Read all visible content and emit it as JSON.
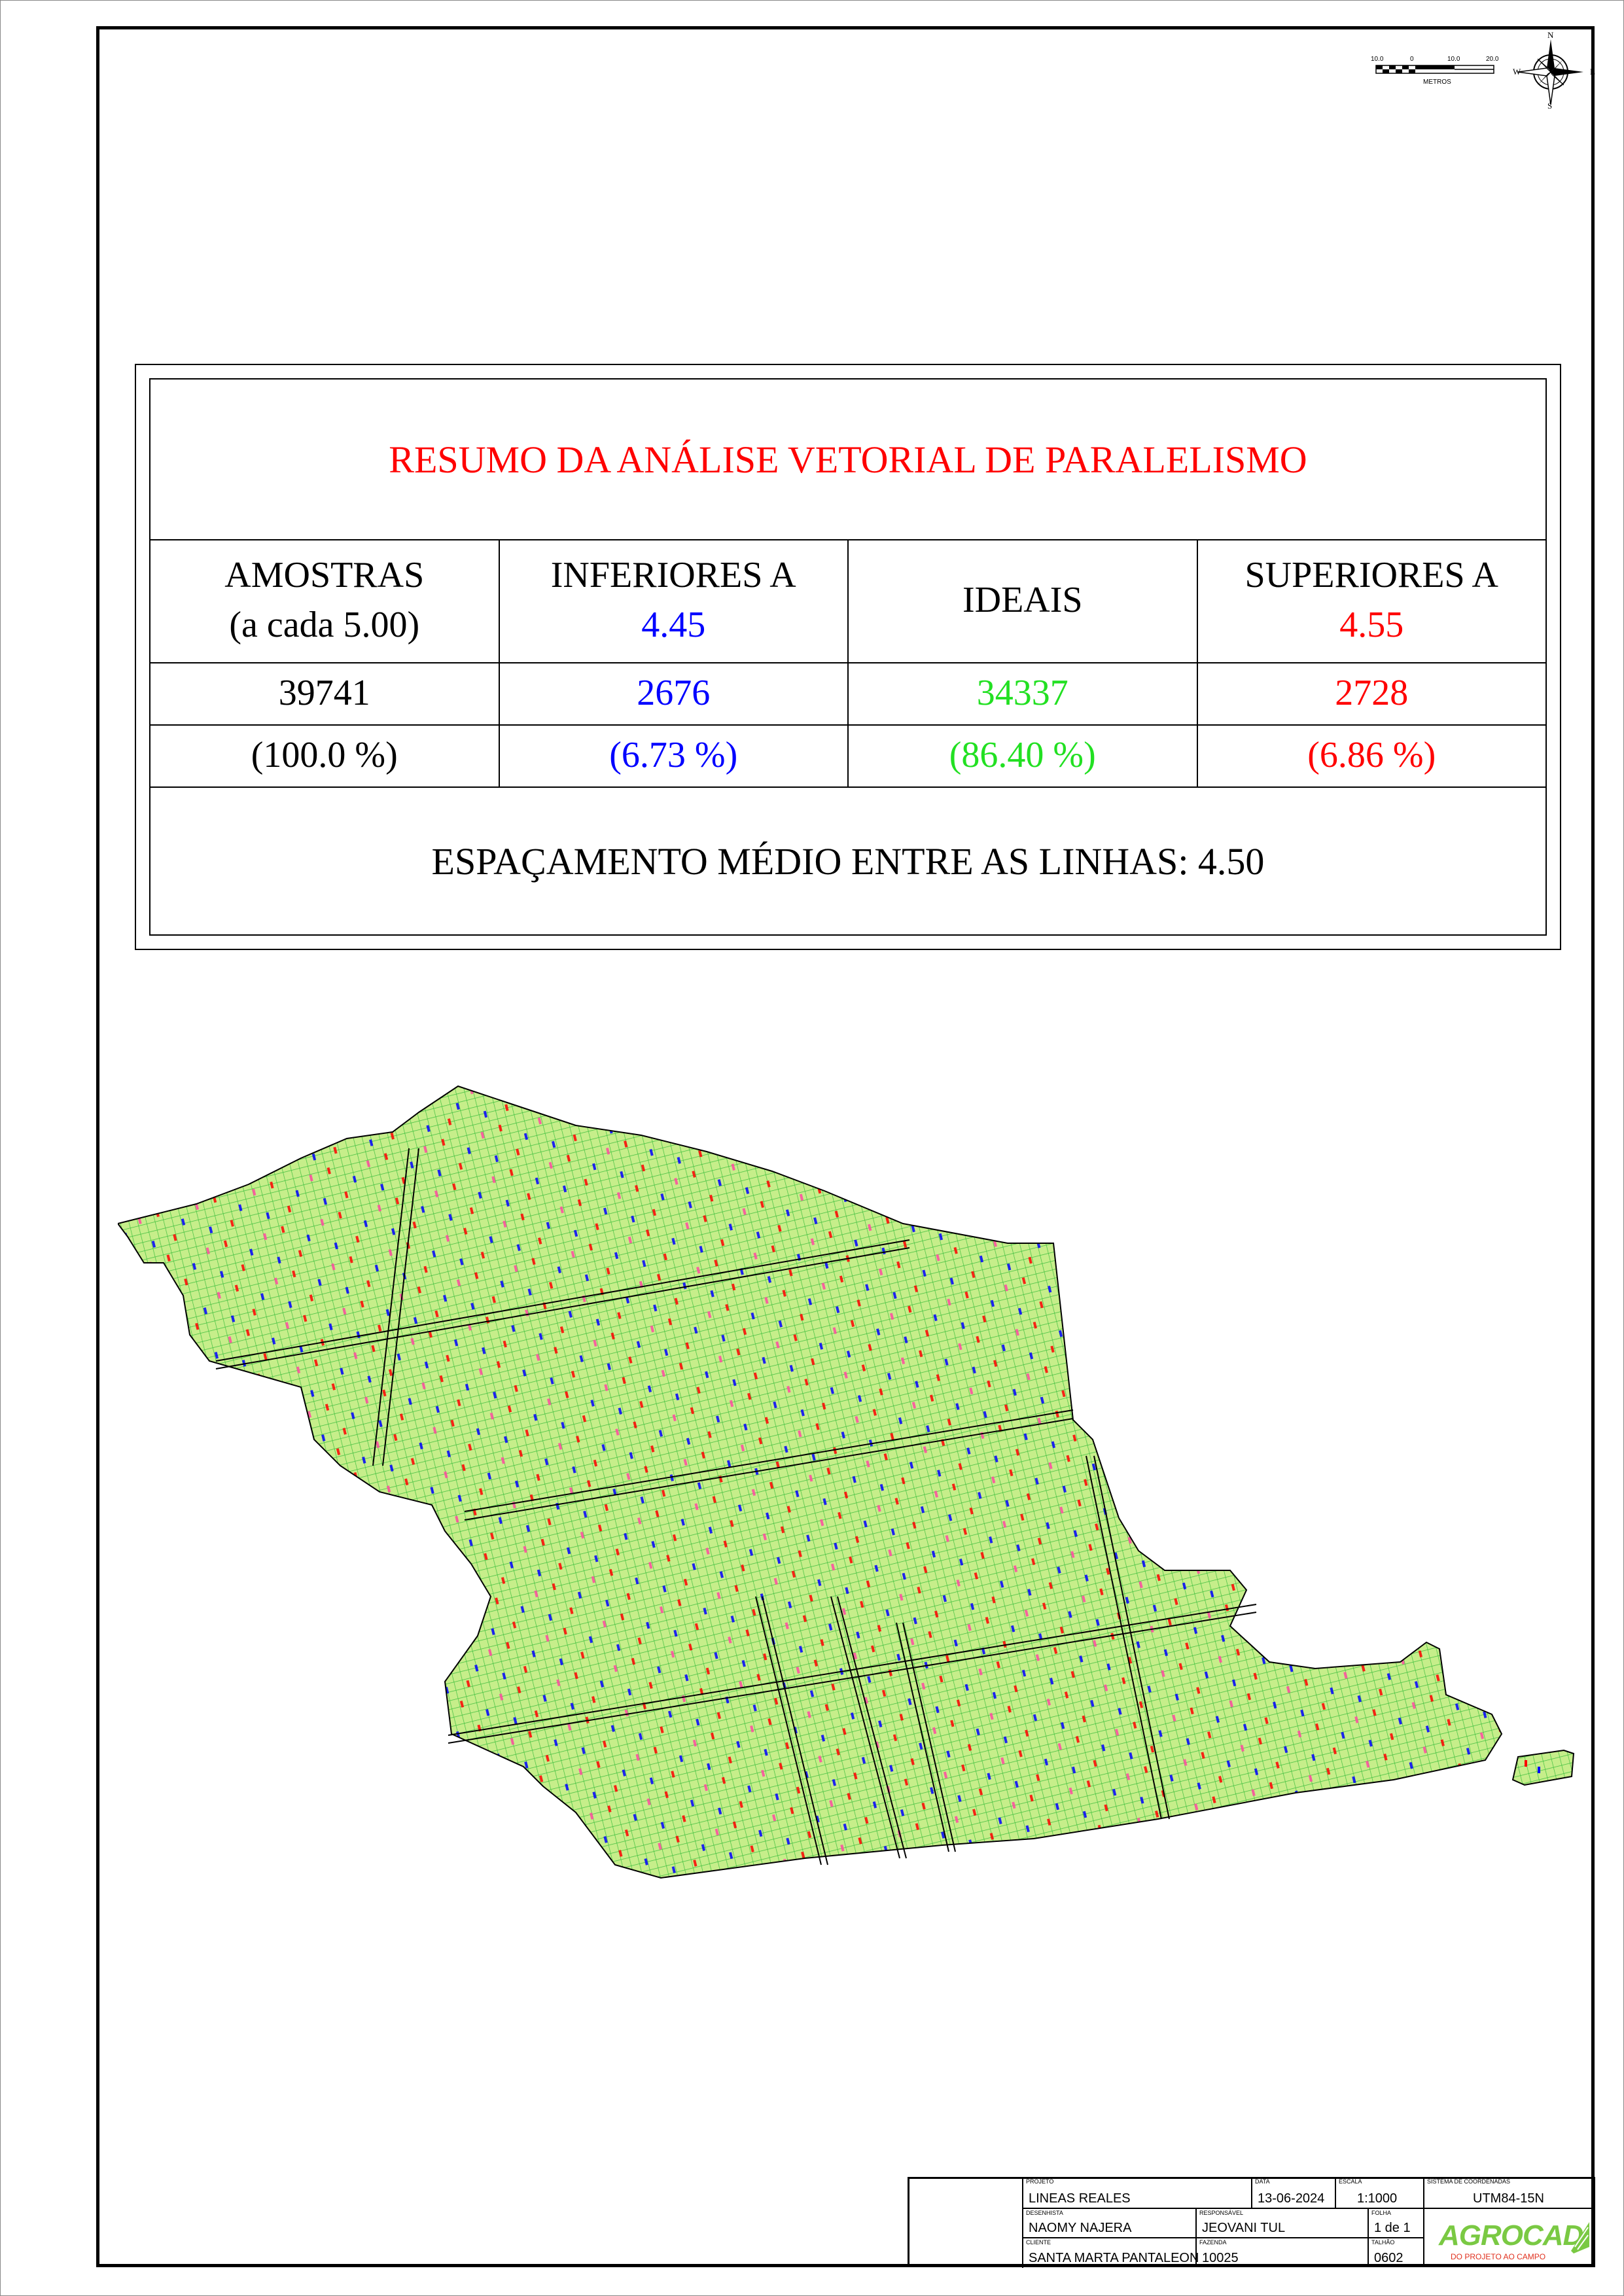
{
  "scalebar": {
    "ticks": [
      "10.0",
      "0",
      "10.0",
      "20.0"
    ],
    "unit": "METROS"
  },
  "compass": {
    "n": "N",
    "s": "S",
    "e": "E",
    "w": "W"
  },
  "summary": {
    "title": "RESUMO DA ANÁLISE VETORIAL DE PARALELISMO",
    "headers": {
      "samples_line1": "AMOSTRAS",
      "samples_line2": "(a cada 5.00)",
      "lower_line1": "INFERIORES A",
      "lower_line2": "4.45",
      "ideal": "IDEAIS",
      "upper_line1": "SUPERIORES A",
      "upper_line2": "4.55"
    },
    "counts": {
      "samples": "39741",
      "lower": "2676",
      "ideal": "34337",
      "upper": "2728"
    },
    "percents": {
      "samples": "(100.0 %)",
      "lower": "(6.73 %)",
      "ideal": "(86.40 %)",
      "upper": "(6.86 %)"
    },
    "footer": "ESPAÇAMENTO MÉDIO ENTRE AS LINHAS:  4.50",
    "colors": {
      "title": "#ff0000",
      "lower": "#0000ff",
      "ideal": "#22e022",
      "upper": "#ff0000"
    }
  },
  "map": {
    "fill_color": "#c6ee8a",
    "grid_color": "#3fbf3f",
    "lower_color": "#0000ff",
    "upper_color": "#ff0000"
  },
  "title_block": {
    "projeto_caption": "PROJETO",
    "projeto": "LINEAS REALES",
    "data_caption": "DATA",
    "data": "13-06-2024",
    "escala_caption": "ESCALA",
    "escala": "1:1000",
    "sistema_caption": "SISTEMA DE COORDENADAS",
    "sistema": "UTM84-15N",
    "desenhista_caption": "DESENHISTA",
    "desenhista": "NAOMY NAJERA",
    "responsavel_caption": "RESPONSÁVEL",
    "responsavel": "JEOVANI TUL",
    "folha_caption": "FOLHA",
    "folha": "1 de 1",
    "cliente_caption": "CLIENTE",
    "cliente": "SANTA MARTA PANTALEON",
    "fazenda_caption": "FAZENDA",
    "fazenda": "10025",
    "talhao_caption": "TALHÃO",
    "talhao": "0602",
    "logo_name": "AGROCAD",
    "logo_tagline": "DO PROJETO AO CAMPO",
    "logo_color": "#7ac943",
    "logo_tagline_color": "#e0301e"
  }
}
